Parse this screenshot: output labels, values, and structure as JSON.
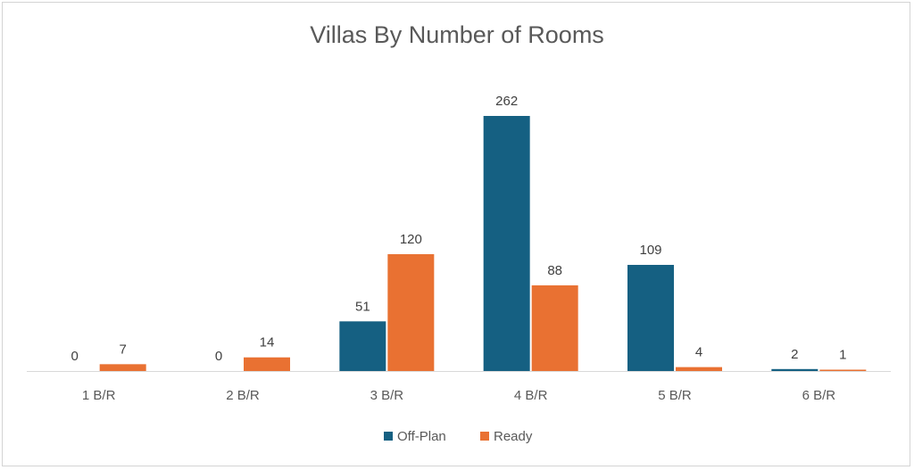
{
  "chart_data": {
    "type": "bar",
    "title": "Villas By Number of Rooms",
    "categories": [
      "1 B/R",
      "2 B/R",
      "3 B/R",
      "4 B/R",
      "5 B/R",
      "6 B/R"
    ],
    "series": [
      {
        "name": "Off-Plan",
        "values": [
          0,
          0,
          51,
          262,
          109,
          2
        ],
        "color": "#156082"
      },
      {
        "name": "Ready",
        "values": [
          7,
          14,
          120,
          88,
          4,
          1
        ],
        "color": "#E97132"
      }
    ],
    "ylim": [
      0,
      270
    ],
    "grid": false,
    "legend": "bottom",
    "data_labels": true
  }
}
